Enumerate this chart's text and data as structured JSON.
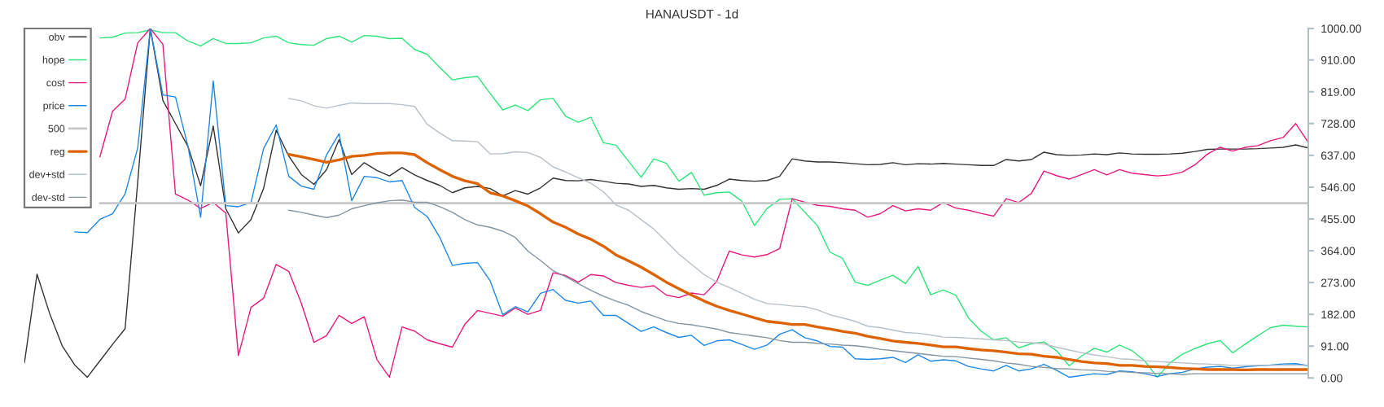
{
  "chart_data": {
    "type": "line",
    "title": "HANAUSDT - 1d",
    "categories": [
      null,
      null,
      null,
      null,
      null,
      null,
      null,
      null,
      null,
      null,
      null,
      null,
      null,
      null,
      null,
      null,
      null,
      null,
      null,
      null,
      null,
      null,
      null,
      null,
      null,
      null,
      null,
      null,
      null,
      null,
      null,
      null,
      null,
      null,
      null,
      null,
      null,
      null,
      null,
      null,
      null,
      null,
      null,
      null,
      null,
      null,
      null,
      null,
      null,
      null,
      null,
      null,
      null,
      null,
      null,
      null,
      null,
      null,
      null,
      null,
      null,
      null,
      null,
      null,
      null,
      null,
      null,
      null,
      null,
      null,
      null,
      null,
      null,
      null,
      null,
      null,
      null,
      null,
      null,
      null,
      null,
      null,
      null,
      null,
      null,
      null,
      null,
      null,
      null,
      null,
      null,
      null,
      null,
      null,
      null,
      null,
      null,
      null,
      null,
      null,
      null,
      null,
      null
    ],
    "series": [
      {
        "name": "obv",
        "color": "#333333",
        "values": [
          43,
          297,
          185,
          92,
          37,
          2,
          49,
          96,
          141,
          560,
          1000,
          794,
          728,
          662,
          550,
          721,
          484,
          415,
          453,
          542,
          709,
          635,
          582,
          554,
          596,
          682,
          582,
          616,
          594,
          578,
          602,
          581,
          565,
          551,
          530,
          544,
          548,
          542,
          521,
          536,
          526,
          544,
          572,
          565,
          564,
          568,
          563,
          557,
          555,
          548,
          551,
          544,
          540,
          542,
          540,
          551,
          569,
          565,
          563,
          565,
          577,
          627,
          621,
          618,
          618,
          616,
          613,
          610,
          611,
          616,
          610,
          613,
          612,
          614,
          612,
          610,
          608,
          608,
          625,
          621,
          625,
          646,
          639,
          637,
          638,
          641,
          639,
          644,
          641,
          640,
          640,
          641,
          643,
          648,
          654,
          655,
          655,
          655,
          656,
          658,
          660,
          667,
          658
        ]
      },
      {
        "name": "hope",
        "color": "#2ee57a",
        "values": [
          null,
          null,
          null,
          null,
          null,
          null,
          973,
          975,
          987,
          988,
          996,
          988,
          988,
          964,
          950,
          971,
          957,
          957,
          959,
          973,
          978,
          959,
          954,
          952,
          971,
          978,
          961,
          980,
          978,
          971,
          972,
          940,
          926,
          888,
          853,
          859,
          863,
          814,
          767,
          781,
          765,
          796,
          800,
          749,
          732,
          746,
          673,
          666,
          620,
          574,
          627,
          614,
          563,
          588,
          523,
          530,
          532,
          506,
          436,
          485,
          511,
          513,
          474,
          436,
          360,
          342,
          274,
          265,
          280,
          294,
          270,
          319,
          238,
          252,
          237,
          172,
          134,
          109,
          115,
          86,
          98,
          103,
          78,
          35,
          63,
          85,
          74,
          94,
          78,
          49,
          2,
          43,
          68,
          84,
          98,
          107,
          72,
          97,
          121,
          144,
          151,
          148,
          146
        ]
      },
      {
        "name": "cost",
        "color": "#e8197d",
        "values": [
          null,
          null,
          null,
          null,
          null,
          null,
          633,
          763,
          798,
          959,
          1000,
          955,
          526,
          509,
          485,
          502,
          472,
          64,
          202,
          228,
          325,
          305,
          214,
          102,
          121,
          179,
          156,
          175,
          53,
          2,
          146,
          134,
          109,
          98,
          88,
          154,
          193,
          185,
          177,
          200,
          182,
          193,
          301,
          293,
          274,
          296,
          292,
          273,
          265,
          259,
          264,
          237,
          230,
          243,
          238,
          276,
          363,
          352,
          346,
          353,
          370,
          513,
          503,
          494,
          491,
          484,
          480,
          460,
          470,
          493,
          478,
          484,
          480,
          502,
          486,
          480,
          471,
          463,
          513,
          502,
          528,
          592,
          579,
          569,
          582,
          596,
          581,
          596,
          586,
          582,
          578,
          581,
          589,
          610,
          641,
          660,
          649,
          660,
          665,
          679,
          688,
          728,
          674
        ]
      },
      {
        "name": "price",
        "color": "#1e88e5",
        "values": [
          null,
          null,
          null,
          null,
          418,
          416,
          454,
          470,
          527,
          658,
          1000,
          810,
          804,
          662,
          460,
          850,
          493,
          490,
          502,
          656,
          724,
          577,
          549,
          540,
          638,
          699,
          507,
          577,
          573,
          561,
          565,
          488,
          462,
          402,
          322,
          328,
          330,
          278,
          181,
          204,
          189,
          242,
          253,
          222,
          214,
          220,
          179,
          179,
          156,
          133,
          146,
          130,
          116,
          122,
          93,
          106,
          109,
          96,
          82,
          94,
          125,
          138,
          115,
          106,
          90,
          88,
          55,
          53,
          55,
          59,
          44,
          66,
          48,
          52,
          49,
          33,
          26,
          20,
          36,
          20,
          26,
          39,
          22,
          2,
          7,
          12,
          10,
          20,
          18,
          12,
          4,
          12,
          16,
          26,
          31,
          33,
          28,
          32,
          35,
          37,
          40,
          41,
          35
        ]
      },
      {
        "name": "500",
        "color": "#c8c8c8",
        "values": [
          null,
          null,
          null,
          null,
          null,
          null,
          500,
          500,
          500,
          500,
          500,
          500,
          500,
          500,
          500,
          500,
          500,
          500,
          500,
          500,
          500,
          500,
          500,
          500,
          500,
          500,
          500,
          500,
          500,
          500,
          500,
          500,
          500,
          500,
          500,
          500,
          500,
          500,
          500,
          500,
          500,
          500,
          500,
          500,
          500,
          500,
          500,
          500,
          500,
          500,
          500,
          500,
          500,
          500,
          500,
          500,
          500,
          500,
          500,
          500,
          500,
          500,
          500,
          500,
          500,
          500,
          500,
          500,
          500,
          500,
          500,
          500,
          500,
          500,
          500,
          500,
          500,
          500,
          500,
          500,
          500,
          500,
          500,
          500,
          500,
          500,
          500,
          500,
          500,
          500,
          500,
          500,
          500,
          500,
          500,
          500,
          500,
          500,
          500,
          500,
          500,
          500,
          500
        ]
      },
      {
        "name": "reg",
        "color": "#dd6200",
        "values": [
          null,
          null,
          null,
          null,
          null,
          null,
          null,
          null,
          null,
          null,
          null,
          null,
          null,
          null,
          null,
          null,
          null,
          null,
          null,
          null,
          null,
          640,
          633,
          625,
          617,
          624,
          634,
          637,
          642,
          644,
          644,
          639,
          616,
          596,
          577,
          564,
          556,
          530,
          521,
          507,
          492,
          470,
          446,
          431,
          412,
          397,
          377,
          352,
          335,
          317,
          296,
          274,
          255,
          237,
          220,
          205,
          193,
          183,
          172,
          162,
          158,
          153,
          153,
          146,
          140,
          133,
          128,
          119,
          113,
          106,
          102,
          99,
          94,
          89,
          89,
          84,
          80,
          78,
          74,
          69,
          68,
          62,
          59,
          53,
          47,
          43,
          41,
          36,
          36,
          33,
          32,
          30,
          27,
          26,
          24,
          24,
          24,
          23,
          24,
          24,
          24,
          24,
          24
        ]
      },
      {
        "name": "dev+std",
        "color": "#b8c0c8",
        "values": [
          null,
          null,
          null,
          null,
          null,
          null,
          null,
          null,
          null,
          null,
          null,
          null,
          null,
          null,
          null,
          null,
          null,
          null,
          null,
          null,
          null,
          800,
          793,
          779,
          772,
          780,
          787,
          785,
          785,
          785,
          782,
          777,
          726,
          701,
          679,
          678,
          676,
          641,
          642,
          647,
          645,
          631,
          604,
          589,
          573,
          557,
          533,
          495,
          480,
          453,
          426,
          391,
          354,
          325,
          296,
          274,
          259,
          242,
          225,
          213,
          210,
          206,
          204,
          195,
          181,
          172,
          162,
          148,
          144,
          137,
          130,
          128,
          123,
          117,
          116,
          114,
          112,
          109,
          107,
          103,
          101,
          97,
          88,
          80,
          72,
          66,
          61,
          55,
          53,
          49,
          47,
          45,
          43,
          41,
          40,
          38,
          36,
          36,
          36,
          36,
          36,
          36,
          36
        ]
      },
      {
        "name": "dev-std",
        "color": "#8494a2",
        "values": [
          null,
          null,
          null,
          null,
          null,
          null,
          null,
          null,
          null,
          null,
          null,
          null,
          null,
          null,
          null,
          null,
          null,
          null,
          null,
          null,
          null,
          480,
          474,
          466,
          459,
          466,
          484,
          493,
          501,
          507,
          509,
          503,
          503,
          490,
          474,
          453,
          438,
          431,
          420,
          402,
          363,
          336,
          307,
          290,
          270,
          251,
          234,
          220,
          208,
          190,
          177,
          164,
          156,
          152,
          146,
          140,
          130,
          125,
          120,
          115,
          107,
          102,
          102,
          99,
          97,
          94,
          92,
          88,
          82,
          78,
          74,
          70,
          66,
          62,
          61,
          57,
          53,
          49,
          43,
          39,
          33,
          30,
          27,
          26,
          23,
          22,
          19,
          18,
          16,
          15,
          13,
          12,
          10,
          12,
          12,
          12,
          12,
          12,
          12,
          12,
          12,
          12,
          12
        ]
      }
    ],
    "ylim": [
      0,
      1000
    ],
    "yticks": [
      {
        "value": 0,
        "label": "0.00"
      },
      {
        "value": 91,
        "label": "91.00"
      },
      {
        "value": 182,
        "label": "182.00"
      },
      {
        "value": 273,
        "label": "273.00"
      },
      {
        "value": 364,
        "label": "364.00"
      },
      {
        "value": 455,
        "label": "455.00"
      },
      {
        "value": 546,
        "label": "546.00"
      },
      {
        "value": 637,
        "label": "637.00"
      },
      {
        "value": 728,
        "label": "728.00"
      },
      {
        "value": 819,
        "label": "819.00"
      },
      {
        "value": 910,
        "label": "910.00"
      },
      {
        "value": 1000,
        "label": "1000.00"
      }
    ],
    "tick_labels": "y",
    "legend": "top left"
  }
}
